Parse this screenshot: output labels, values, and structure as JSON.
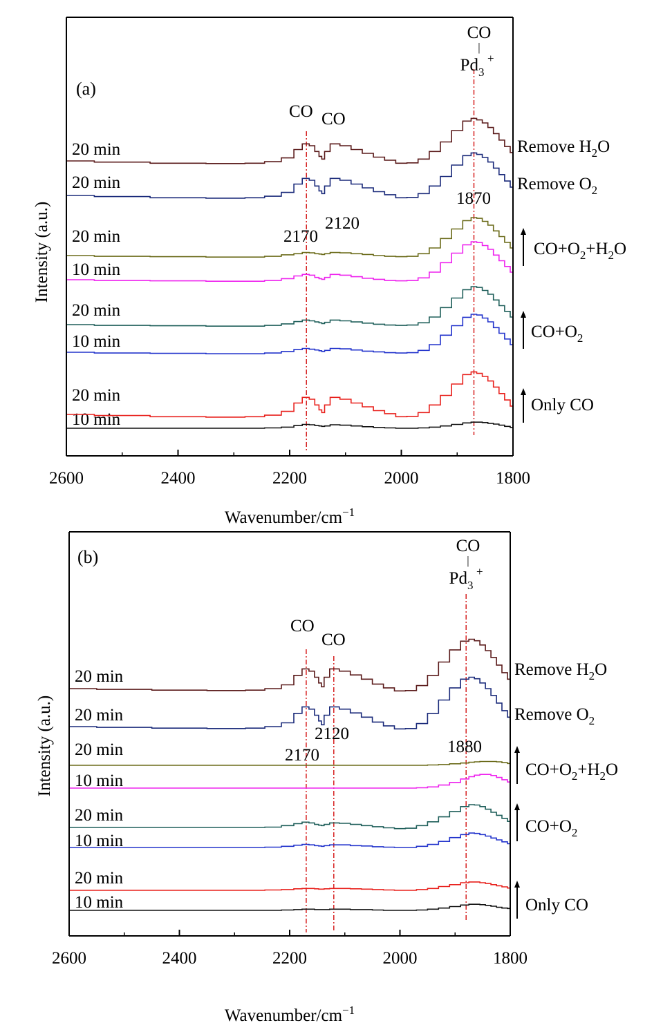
{
  "chart_data": [
    {
      "panel": "(a)",
      "type": "line",
      "xlabel": "Wavenumber/cm⁻¹",
      "ylabel": "Intensity (a.u.)",
      "xlim": [
        2600,
        1800
      ],
      "x_reversed": true,
      "xticks": [
        2600,
        2400,
        2200,
        2000,
        1800
      ],
      "x_minor_step": 100,
      "grid": false,
      "line_style": "stepped",
      "x": [
        2600,
        2500,
        2400,
        2300,
        2260,
        2230,
        2200,
        2185,
        2170,
        2160,
        2150,
        2145,
        2140,
        2135,
        2120,
        2100,
        2080,
        2060,
        2040,
        2020,
        2000,
        1980,
        1960,
        1940,
        1920,
        1900,
        1880,
        1870,
        1860,
        1850,
        1840,
        1830,
        1820,
        1810,
        1800
      ],
      "series": [
        {
          "name": "10 min",
          "color": "#111111",
          "values": [
            0.0,
            0.0,
            0.0,
            0.0,
            0.0,
            0.01,
            0.03,
            0.07,
            0.1,
            0.09,
            0.07,
            0.06,
            0.05,
            0.06,
            0.09,
            0.08,
            0.06,
            0.04,
            0.02,
            0.01,
            0.0,
            0.0,
            0.01,
            0.03,
            0.06,
            0.1,
            0.14,
            0.16,
            0.16,
            0.15,
            0.13,
            0.11,
            0.08,
            0.05,
            0.02
          ]
        },
        {
          "name": "20 min",
          "color": "#e8201c",
          "values": [
            0.0,
            -0.03,
            -0.06,
            -0.07,
            -0.06,
            -0.02,
            0.08,
            0.3,
            0.45,
            0.4,
            0.25,
            0.12,
            0.05,
            0.25,
            0.45,
            0.4,
            0.3,
            0.2,
            0.1,
            0.02,
            -0.06,
            -0.05,
            0.05,
            0.25,
            0.5,
            0.8,
            1.05,
            1.12,
            1.08,
            1.0,
            0.88,
            0.72,
            0.55,
            0.38,
            0.22
          ]
        },
        {
          "name": "10 min",
          "color": "#2233cc",
          "values": [
            0.0,
            -0.02,
            -0.03,
            -0.04,
            -0.04,
            -0.02,
            0.02,
            0.07,
            0.1,
            0.08,
            0.06,
            0.04,
            0.02,
            0.05,
            0.1,
            0.09,
            0.06,
            0.03,
            0.01,
            -0.01,
            -0.02,
            -0.01,
            0.05,
            0.2,
            0.45,
            0.7,
            0.92,
            1.0,
            0.98,
            0.9,
            0.8,
            0.65,
            0.5,
            0.35,
            0.2
          ]
        },
        {
          "name": "20 min",
          "color": "#1f5f5a",
          "values": [
            0.0,
            -0.02,
            -0.03,
            -0.04,
            -0.04,
            -0.02,
            0.02,
            0.08,
            0.12,
            0.1,
            0.07,
            0.05,
            0.03,
            0.06,
            0.12,
            0.1,
            0.07,
            0.04,
            0.01,
            -0.01,
            -0.02,
            -0.01,
            0.05,
            0.2,
            0.45,
            0.7,
            0.92,
            1.0,
            0.98,
            0.9,
            0.8,
            0.65,
            0.5,
            0.35,
            0.2
          ]
        },
        {
          "name": "10 min",
          "color": "#ee22ee",
          "values": [
            0.0,
            -0.02,
            -0.03,
            -0.04,
            -0.04,
            -0.02,
            0.03,
            0.1,
            0.14,
            0.12,
            0.06,
            0.03,
            0.01,
            0.06,
            0.14,
            0.12,
            0.08,
            0.04,
            0.01,
            -0.02,
            -0.03,
            -0.02,
            0.05,
            0.2,
            0.45,
            0.7,
            0.92,
            1.0,
            0.98,
            0.9,
            0.8,
            0.65,
            0.5,
            0.35,
            0.2
          ]
        },
        {
          "name": "20 min",
          "color": "#6b6b1a",
          "values": [
            0.0,
            -0.02,
            -0.03,
            -0.04,
            -0.04,
            -0.02,
            0.02,
            0.05,
            0.08,
            0.07,
            0.05,
            0.04,
            0.03,
            0.05,
            0.08,
            0.07,
            0.05,
            0.03,
            0.0,
            -0.02,
            -0.03,
            -0.02,
            0.05,
            0.2,
            0.45,
            0.7,
            0.92,
            1.0,
            0.98,
            0.9,
            0.8,
            0.65,
            0.5,
            0.35,
            0.2
          ]
        },
        {
          "name": "20 min",
          "color": "#1a2a7a",
          "values": [
            0.0,
            -0.03,
            -0.06,
            -0.07,
            -0.06,
            -0.02,
            0.08,
            0.3,
            0.45,
            0.4,
            0.25,
            0.12,
            0.05,
            0.25,
            0.45,
            0.4,
            0.3,
            0.2,
            0.1,
            0.02,
            -0.06,
            -0.05,
            0.05,
            0.25,
            0.5,
            0.8,
            1.05,
            1.12,
            1.08,
            1.0,
            0.88,
            0.72,
            0.55,
            0.38,
            0.22
          ]
        },
        {
          "name": "20 min",
          "color": "#5a1a1a",
          "values": [
            0.0,
            -0.03,
            -0.06,
            -0.07,
            -0.06,
            -0.02,
            0.08,
            0.3,
            0.45,
            0.4,
            0.25,
            0.12,
            0.05,
            0.25,
            0.45,
            0.4,
            0.3,
            0.2,
            0.1,
            0.02,
            -0.06,
            -0.05,
            0.05,
            0.25,
            0.5,
            0.8,
            1.05,
            1.12,
            1.08,
            1.0,
            0.88,
            0.72,
            0.55,
            0.38,
            0.22
          ]
        }
      ],
      "reference_lines": [
        2170,
        1870
      ],
      "annotations": {
        "peak_2170": "2170",
        "peak_2120": "2120",
        "peak_1870": "1870",
        "co_1": "CO",
        "co_2": "CO",
        "top_co": "CO",
        "top_bar": "|",
        "top_pd": "Pd",
        "top_pd_sub": "3",
        "top_pd_sup": "+"
      },
      "condition_labels": [
        {
          "text": "Remove H",
          "sub": "2",
          "tail": "O"
        },
        {
          "text": "Remove O",
          "sub": "2",
          "tail": ""
        },
        {
          "text": "CO+O",
          "sub": "2",
          "mid": "+H",
          "sub2": "2",
          "tail": "O"
        },
        {
          "text": "CO+O",
          "sub": "2",
          "tail": ""
        },
        {
          "text": "Only CO",
          "sub": "",
          "tail": ""
        }
      ]
    },
    {
      "panel": "(b)",
      "type": "line",
      "xlabel": "Wavenumber/cm⁻¹",
      "ylabel": "Intensity (a.u.)",
      "xlim": [
        2600,
        1800
      ],
      "x_reversed": true,
      "xticks": [
        2600,
        2400,
        2200,
        2000,
        1800
      ],
      "x_minor_step": 100,
      "grid": false,
      "line_style": "stepped",
      "x": [
        2600,
        2500,
        2400,
        2300,
        2260,
        2230,
        2200,
        2185,
        2170,
        2160,
        2150,
        2145,
        2140,
        2135,
        2120,
        2100,
        2080,
        2060,
        2040,
        2020,
        2000,
        1980,
        1960,
        1940,
        1920,
        1900,
        1880,
        1870,
        1860,
        1850,
        1840,
        1830,
        1820,
        1810,
        1800
      ],
      "series": [
        {
          "name": "10 min",
          "color": "#111111",
          "values": [
            0.0,
            0.0,
            0.0,
            0.0,
            0.0,
            0.0,
            0.01,
            0.02,
            0.03,
            0.03,
            0.02,
            0.02,
            0.02,
            0.02,
            0.03,
            0.03,
            0.02,
            0.02,
            0.01,
            0.0,
            0.0,
            0.0,
            0.01,
            0.03,
            0.06,
            0.1,
            0.14,
            0.16,
            0.16,
            0.15,
            0.13,
            0.11,
            0.08,
            0.06,
            0.05
          ]
        },
        {
          "name": "20 min",
          "color": "#e8201c",
          "values": [
            0.0,
            0.0,
            0.0,
            0.0,
            0.0,
            0.01,
            0.02,
            0.04,
            0.05,
            0.05,
            0.04,
            0.03,
            0.03,
            0.04,
            0.05,
            0.05,
            0.04,
            0.03,
            0.02,
            0.01,
            0.0,
            0.0,
            0.02,
            0.05,
            0.1,
            0.15,
            0.2,
            0.22,
            0.22,
            0.2,
            0.18,
            0.15,
            0.12,
            0.09,
            0.06
          ]
        },
        {
          "name": "10 min",
          "color": "#2233cc",
          "values": [
            0.0,
            0.0,
            0.0,
            0.0,
            0.0,
            0.01,
            0.03,
            0.06,
            0.08,
            0.07,
            0.05,
            0.04,
            0.03,
            0.05,
            0.07,
            0.07,
            0.05,
            0.04,
            0.02,
            0.01,
            0.0,
            0.0,
            0.03,
            0.08,
            0.16,
            0.26,
            0.34,
            0.38,
            0.37,
            0.34,
            0.3,
            0.25,
            0.2,
            0.15,
            0.1
          ]
        },
        {
          "name": "20 min",
          "color": "#1f5f5a",
          "values": [
            0.0,
            0.0,
            0.0,
            0.0,
            0.0,
            0.01,
            0.05,
            0.1,
            0.14,
            0.12,
            0.08,
            0.06,
            0.05,
            0.08,
            0.12,
            0.11,
            0.08,
            0.05,
            0.02,
            -0.01,
            -0.03,
            -0.02,
            0.05,
            0.15,
            0.28,
            0.42,
            0.55,
            0.6,
            0.59,
            0.55,
            0.48,
            0.4,
            0.32,
            0.24,
            0.16
          ]
        },
        {
          "name": "10 min",
          "color": "#ee22ee",
          "values": [
            0.0,
            0.0,
            0.0,
            0.0,
            0.0,
            0.0,
            0.0,
            0.0,
            0.0,
            0.0,
            0.0,
            0.0,
            0.0,
            0.0,
            0.0,
            0.0,
            0.0,
            0.0,
            0.0,
            0.0,
            0.0,
            0.0,
            0.01,
            0.03,
            0.08,
            0.15,
            0.24,
            0.3,
            0.34,
            0.36,
            0.36,
            0.33,
            0.28,
            0.22,
            0.16
          ]
        },
        {
          "name": "20 min",
          "color": "#6b6b1a",
          "values": [
            0.0,
            0.0,
            0.0,
            0.0,
            0.0,
            0.0,
            0.0,
            0.0,
            0.0,
            0.0,
            0.0,
            0.0,
            0.0,
            0.0,
            0.0,
            0.0,
            0.0,
            0.0,
            0.0,
            0.0,
            0.0,
            0.0,
            0.0,
            0.01,
            0.02,
            0.04,
            0.06,
            0.08,
            0.09,
            0.1,
            0.1,
            0.1,
            0.09,
            0.07,
            0.05
          ]
        },
        {
          "name": "20 min",
          "color": "#1a2a7a",
          "values": [
            0.0,
            -0.02,
            -0.04,
            -0.05,
            -0.04,
            0.0,
            0.1,
            0.35,
            0.52,
            0.46,
            0.3,
            0.15,
            0.05,
            0.3,
            0.52,
            0.46,
            0.36,
            0.25,
            0.12,
            0.02,
            -0.06,
            -0.05,
            0.08,
            0.35,
            0.7,
            1.02,
            1.25,
            1.3,
            1.26,
            1.15,
            1.0,
            0.82,
            0.62,
            0.42,
            0.25
          ]
        },
        {
          "name": "20 min",
          "color": "#5a1a1a",
          "values": [
            0.0,
            -0.02,
            -0.04,
            -0.05,
            -0.04,
            0.0,
            0.1,
            0.35,
            0.52,
            0.46,
            0.3,
            0.15,
            0.05,
            0.3,
            0.52,
            0.46,
            0.36,
            0.25,
            0.12,
            0.02,
            -0.06,
            -0.05,
            0.08,
            0.35,
            0.7,
            1.02,
            1.25,
            1.3,
            1.26,
            1.15,
            1.0,
            0.82,
            0.62,
            0.42,
            0.25
          ]
        }
      ],
      "reference_lines": [
        2170,
        2120,
        1880
      ],
      "annotations": {
        "peak_2170": "2170",
        "peak_2120": "2120",
        "peak_1880": "1880",
        "co_1": "CO",
        "co_2": "CO",
        "top_co": "CO",
        "top_bar": "|",
        "top_pd": "Pd",
        "top_pd_sub": "3",
        "top_pd_sup": "+"
      },
      "condition_labels": [
        {
          "text": "Remove H",
          "sub": "2",
          "tail": "O"
        },
        {
          "text": "Remove O",
          "sub": "2",
          "tail": ""
        },
        {
          "text": "CO+O",
          "sub": "2",
          "mid": "+H",
          "sub2": "2",
          "tail": "O"
        },
        {
          "text": "CO+O",
          "sub": "2",
          "tail": ""
        },
        {
          "text": "Only CO",
          "sub": "",
          "tail": ""
        }
      ]
    }
  ]
}
